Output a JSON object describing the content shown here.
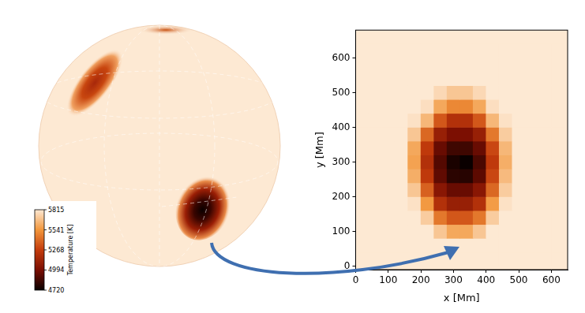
{
  "chart_data": {
    "type": "heatmap",
    "x_label": "x [Mm]",
    "y_label": "y [Mm]",
    "x": [
      20,
      60,
      100,
      140,
      180,
      220,
      260,
      300,
      340,
      380,
      420,
      460,
      500,
      540,
      580,
      620
    ],
    "y": [
      20,
      60,
      100,
      140,
      180,
      220,
      260,
      300,
      340,
      380,
      420,
      460,
      500,
      540,
      580,
      620
    ],
    "z": [
      [
        5815,
        5815,
        5815,
        5815,
        5815,
        5815,
        5815,
        5815,
        5815,
        5815,
        5815,
        5815,
        5815,
        5815,
        5815,
        5815
      ],
      [
        5815,
        5815,
        5815,
        5815,
        5815,
        5815,
        5815,
        5815,
        5815,
        5815,
        5815,
        5815,
        5815,
        5815,
        5815,
        5815
      ],
      [
        5815,
        5815,
        5815,
        5815,
        5815,
        5815,
        5700,
        5600,
        5600,
        5700,
        5815,
        5815,
        5815,
        5815,
        5815,
        5815
      ],
      [
        5815,
        5815,
        5815,
        5815,
        5815,
        5720,
        5450,
        5350,
        5350,
        5450,
        5720,
        5815,
        5815,
        5815,
        5815,
        5815
      ],
      [
        5815,
        5815,
        5815,
        5815,
        5790,
        5550,
        5200,
        5100,
        5100,
        5200,
        5560,
        5790,
        5815,
        5815,
        5815,
        5815
      ],
      [
        5815,
        5815,
        5815,
        5815,
        5700,
        5380,
        5050,
        4950,
        4950,
        5050,
        5400,
        5720,
        5815,
        5815,
        5815,
        5815
      ],
      [
        5815,
        5815,
        5815,
        5815,
        5620,
        5250,
        4930,
        4800,
        4790,
        4920,
        5300,
        5660,
        5815,
        5815,
        5815,
        5815
      ],
      [
        5815,
        5815,
        5815,
        5815,
        5580,
        5200,
        4900,
        4760,
        4720,
        4880,
        5250,
        5620,
        5815,
        5815,
        5815,
        5815
      ],
      [
        5815,
        5815,
        5815,
        5815,
        5600,
        5250,
        4950,
        4850,
        4850,
        4950,
        5300,
        5650,
        5815,
        5815,
        5815,
        5815
      ],
      [
        5815,
        5815,
        5815,
        5815,
        5700,
        5400,
        5100,
        5000,
        5000,
        5100,
        5450,
        5720,
        5815,
        5815,
        5815,
        5815
      ],
      [
        5815,
        5815,
        5815,
        5815,
        5790,
        5650,
        5350,
        5200,
        5200,
        5350,
        5650,
        5790,
        5815,
        5815,
        5815,
        5815
      ],
      [
        5815,
        5815,
        5815,
        5815,
        5815,
        5780,
        5600,
        5500,
        5500,
        5600,
        5780,
        5815,
        5815,
        5815,
        5815,
        5815
      ],
      [
        5815,
        5815,
        5815,
        5815,
        5815,
        5815,
        5760,
        5700,
        5700,
        5760,
        5815,
        5815,
        5815,
        5815,
        5815,
        5815
      ],
      [
        5815,
        5815,
        5815,
        5815,
        5815,
        5815,
        5815,
        5815,
        5815,
        5815,
        5815,
        5815,
        5815,
        5815,
        5815,
        5815
      ],
      [
        5815,
        5815,
        5815,
        5815,
        5815,
        5815,
        5815,
        5815,
        5815,
        5815,
        5815,
        5815,
        5815,
        5815,
        5815,
        5815
      ],
      [
        5815,
        5815,
        5815,
        5815,
        5815,
        5815,
        5815,
        5815,
        5815,
        5815,
        5815,
        5815,
        5815,
        5815,
        5815,
        5815
      ]
    ],
    "xlim": [
      0,
      650
    ],
    "ylim": [
      -10,
      680
    ],
    "xticks": [
      0,
      100,
      200,
      300,
      400,
      500,
      600
    ],
    "yticks": [
      0,
      100,
      200,
      300,
      400,
      500,
      600
    ],
    "colorbar": {
      "label": "Temperature [K]",
      "lim": [
        4720,
        5815
      ],
      "ticks": [
        4720,
        4994,
        5268,
        5541,
        5815
      ]
    }
  }
}
